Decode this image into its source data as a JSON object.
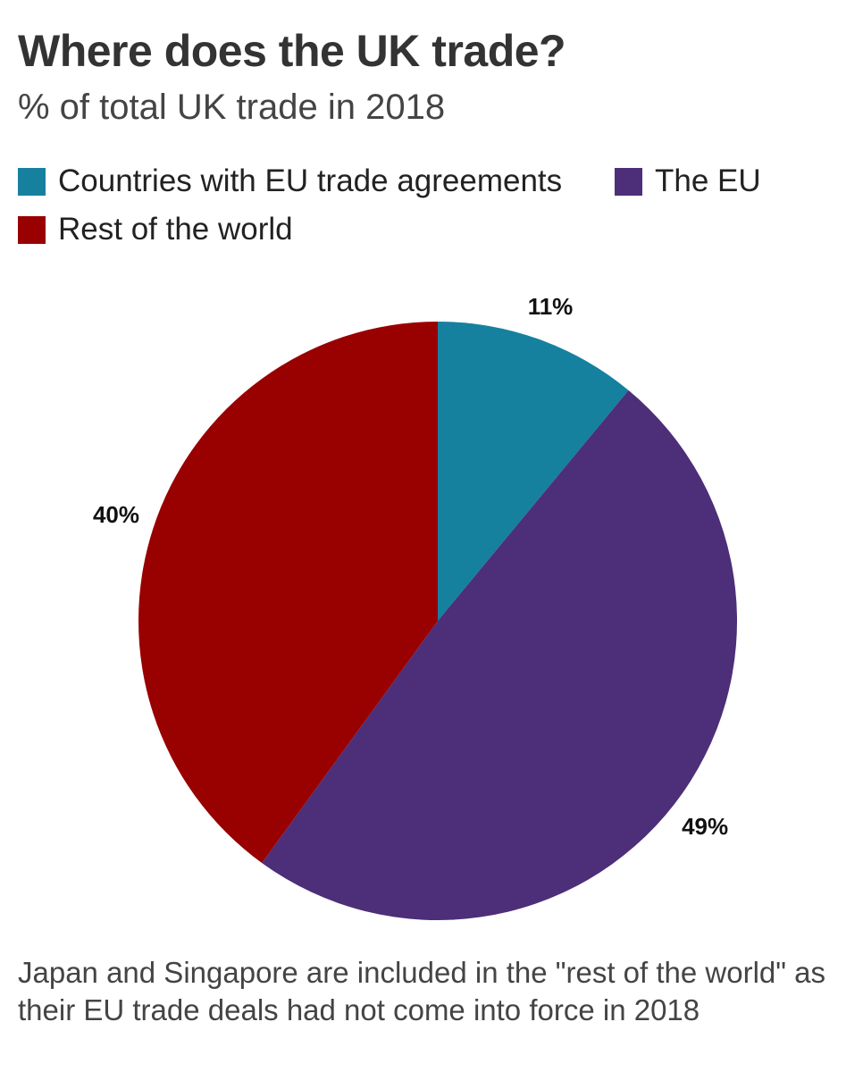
{
  "chart_data": {
    "type": "pie",
    "title": "Where does the UK trade?",
    "subtitle": "% of total UK trade in 2018",
    "slices": [
      {
        "label": "Countries with EU trade agreements",
        "value": 11,
        "display": "11%",
        "color": "#16809f"
      },
      {
        "label": "The EU",
        "value": 49,
        "display": "49%",
        "color": "#4d2e78"
      },
      {
        "label": "Rest of the world",
        "value": 40,
        "display": "40%",
        "color": "#990000"
      }
    ],
    "legend_position": "top-left",
    "note": "Japan and Singapore are included in the \"rest of the world\" as their EU trade deals had not come into force in 2018"
  }
}
